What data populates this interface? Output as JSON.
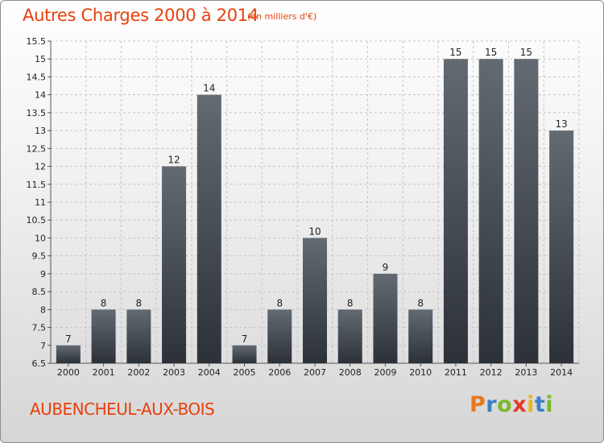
{
  "header": {
    "title": "Autres Charges 2000 à 2014",
    "subtitle": "(en milliers d'€)"
  },
  "footer": {
    "town": "AUBENCHEUL-AUX-BOIS",
    "logo_text": "Proxiti"
  },
  "colors": {
    "title": "#e8400c",
    "bar_top": "#636a72",
    "bar_bottom": "#2c3138",
    "logo": [
      "#e8791d",
      "#3b7fc4",
      "#7ab929",
      "#e23a2a",
      "#e8b51d",
      "#3b7fc4",
      "#7ab929"
    ]
  },
  "chart_data": {
    "type": "bar",
    "categories": [
      "2000",
      "2001",
      "2002",
      "2003",
      "2004",
      "2005",
      "2006",
      "2007",
      "2008",
      "2009",
      "2010",
      "2011",
      "2012",
      "2013",
      "2014"
    ],
    "values": [
      7,
      8,
      8,
      12,
      14,
      7,
      8,
      10,
      8,
      9,
      8,
      15,
      15,
      15,
      13
    ],
    "value_labels": [
      "7",
      "8",
      "8",
      "12",
      "14",
      "7",
      "8",
      "10",
      "8",
      "9",
      "8",
      "15",
      "15",
      "15",
      "13"
    ],
    "ylim": [
      6.5,
      15.5
    ],
    "yticks": [
      6.5,
      7,
      7.5,
      8,
      8.5,
      9,
      9.5,
      10,
      10.5,
      11,
      11.5,
      12,
      12.5,
      13,
      13.5,
      14,
      14.5,
      15,
      15.5
    ],
    "ytick_labels": [
      "6.5",
      "7",
      "7.5",
      "8",
      "8.5",
      "9",
      "9.5",
      "10",
      "10.5",
      "11",
      "11.5",
      "12",
      "12.5",
      "13",
      "13.5",
      "14",
      "14.5",
      "15",
      "15.5"
    ],
    "grid": true,
    "legend": "none"
  }
}
